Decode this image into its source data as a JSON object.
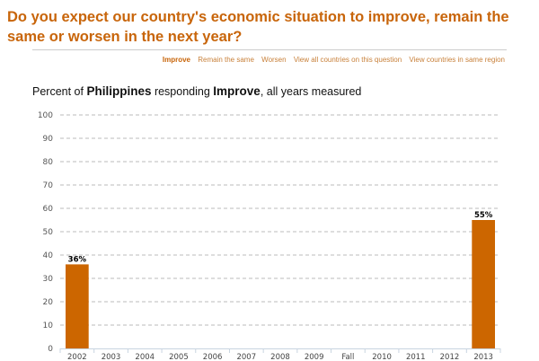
{
  "header": {
    "title": "Do you expect our country's economic situation to improve, remain the same or worsen in the next year?"
  },
  "nav": {
    "items": [
      "Improve",
      "Remain the same",
      "Worsen",
      "View all countries on this question",
      "View countries in same region"
    ],
    "active": 0
  },
  "subtitle": {
    "prefix": "Percent of ",
    "country": "Philippines",
    "mid": " responding ",
    "response": "Improve",
    "suffix": ", all years measured"
  },
  "colors": {
    "accent": "#c8650a",
    "bar": "#cc6600"
  },
  "chart_data": {
    "type": "bar",
    "title": "Percent of Philippines responding Improve, all years measured",
    "categories": [
      "2002",
      "2003",
      "2004",
      "2005",
      "2006",
      "2007",
      "2008",
      "2009",
      "Fall",
      "2010",
      "2011",
      "2012",
      "2013"
    ],
    "values": [
      36,
      null,
      null,
      null,
      null,
      null,
      null,
      null,
      null,
      null,
      null,
      null,
      55
    ],
    "data_labels": [
      "36%",
      "",
      "",
      "",
      "",
      "",
      "",
      "",
      "",
      "",
      "",
      "",
      "55%"
    ],
    "ylim": [
      0,
      100
    ],
    "yticks": [
      0,
      10,
      20,
      30,
      40,
      50,
      60,
      70,
      80,
      90,
      100
    ],
    "grid": true,
    "xlabel": "",
    "ylabel": ""
  }
}
